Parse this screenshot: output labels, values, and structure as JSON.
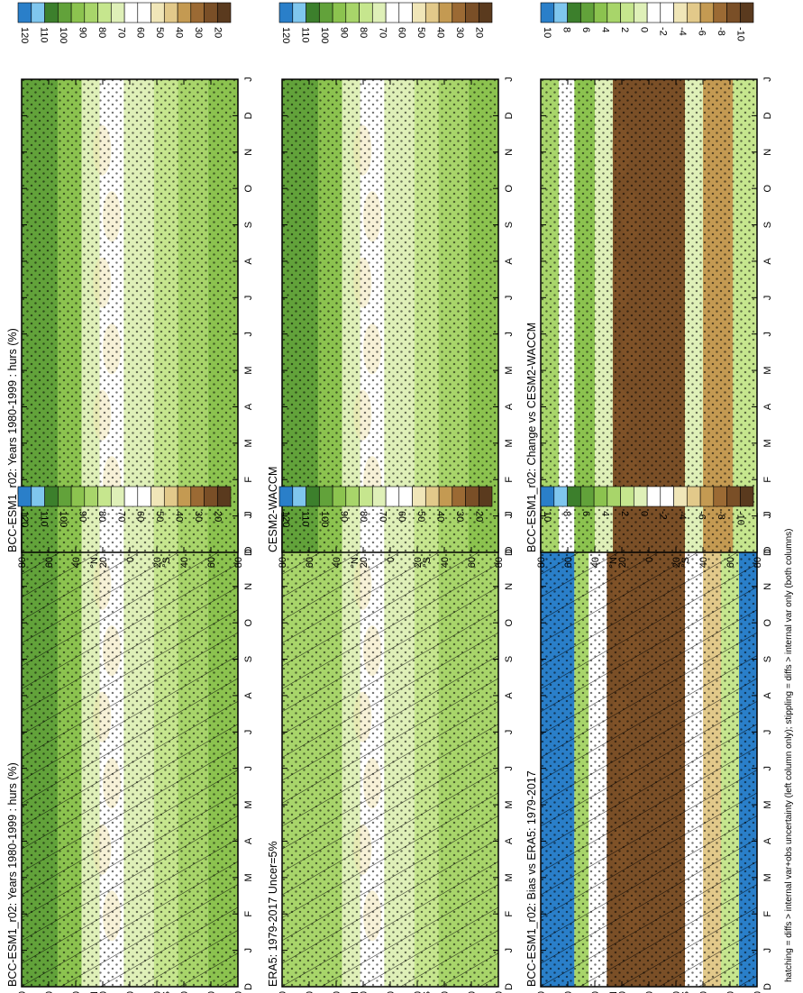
{
  "figure": {
    "footer": "hatching = diffs > internal var+obs uncertainty (left column only); stippling = diffs > internal var only (both columns)",
    "month_ticks": [
      "D",
      "J",
      "F",
      "M",
      "A",
      "M",
      "J",
      "J",
      "A",
      "S",
      "O",
      "N",
      "D",
      "J"
    ],
    "lat_ticks": [
      "80",
      "60",
      "40",
      "20",
      "0",
      "20",
      "40",
      "60",
      "80"
    ],
    "hemisphere_labels": [
      "°N",
      "°S"
    ]
  },
  "colors": {
    "abs": [
      "#5a3a1e",
      "#7a4f27",
      "#9b6a34",
      "#c49a52",
      "#e2c98a",
      "#f0e6b8",
      "#ffffff",
      "#ffffff",
      "#dff0b8",
      "#c6e68e",
      "#a8d56a",
      "#8cc34f",
      "#62a23a",
      "#3c7f2c",
      "#7fc6ee",
      "#2a7fc9"
    ],
    "diff": [
      "#5a3a1e",
      "#7a4f27",
      "#9b6a34",
      "#c49a52",
      "#e2c98a",
      "#f0e6b8",
      "#ffffff",
      "#ffffff",
      "#dff0b8",
      "#c6e68e",
      "#a8d56a",
      "#8cc34f",
      "#62a23a",
      "#3c7f2c",
      "#7fc6ee",
      "#2a7fc9"
    ]
  },
  "colorbars": {
    "abs_labels": [
      "20",
      "30",
      "40",
      "50",
      "60",
      "70",
      "80",
      "90",
      "100",
      "110",
      "120"
    ],
    "diff_labels": [
      "-10",
      "-8",
      "-6",
      "-4",
      "-2",
      "0",
      "2",
      "4",
      "6",
      "8",
      "10"
    ]
  },
  "chart_data": [
    {
      "type": "heatmap",
      "title": "BCC-ESM1_r02: Years 1980-1999 : hurs (%)",
      "x_axis": "month",
      "y_axis": "latitude",
      "bands": [
        {
          "lat": [
            60,
            90
          ],
          "value": 102
        },
        {
          "lat": [
            40,
            60
          ],
          "value": 95
        },
        {
          "lat": [
            25,
            40
          ],
          "value": 75
        },
        {
          "lat": [
            5,
            25
          ],
          "value": 62
        },
        {
          "lat": [
            -20,
            5
          ],
          "value": 72
        },
        {
          "lat": [
            -40,
            -20
          ],
          "value": 78
        },
        {
          "lat": [
            -65,
            -40
          ],
          "value": 90
        },
        {
          "lat": [
            -90,
            -65
          ],
          "value": 95
        }
      ],
      "hatched": true,
      "stippled": true
    },
    {
      "type": "heatmap",
      "title": "BCC-ESM1_r02: Years 1980-1999 : hurs (%)",
      "x_axis": "month",
      "y_axis": "latitude",
      "bands": [
        {
          "lat": [
            60,
            90
          ],
          "value": 100
        },
        {
          "lat": [
            40,
            60
          ],
          "value": 92
        },
        {
          "lat": [
            25,
            40
          ],
          "value": 75
        },
        {
          "lat": [
            5,
            25
          ],
          "value": 65
        },
        {
          "lat": [
            -20,
            5
          ],
          "value": 72
        },
        {
          "lat": [
            -40,
            -20
          ],
          "value": 80
        },
        {
          "lat": [
            -65,
            -40
          ],
          "value": 90
        },
        {
          "lat": [
            -90,
            -65
          ],
          "value": 93
        }
      ],
      "hatched": false,
      "stippled": true
    },
    {
      "type": "heatmap",
      "title": "ERA5: 1979-2017 Uncer=5%",
      "x_axis": "month",
      "y_axis": "latitude",
      "bands": [
        {
          "lat": [
            60,
            90
          ],
          "value": 90
        },
        {
          "lat": [
            40,
            60
          ],
          "value": 86
        },
        {
          "lat": [
            25,
            40
          ],
          "value": 72
        },
        {
          "lat": [
            5,
            25
          ],
          "value": 66
        },
        {
          "lat": [
            -20,
            5
          ],
          "value": 76
        },
        {
          "lat": [
            -40,
            -20
          ],
          "value": 80
        },
        {
          "lat": [
            -65,
            -40
          ],
          "value": 86
        },
        {
          "lat": [
            -90,
            -65
          ],
          "value": 88
        }
      ],
      "hatched": true,
      "stippled": true
    },
    {
      "type": "heatmap",
      "title": "CESM2-WACCM",
      "x_axis": "month",
      "y_axis": "latitude",
      "bands": [
        {
          "lat": [
            60,
            90
          ],
          "value": 100
        },
        {
          "lat": [
            40,
            60
          ],
          "value": 92
        },
        {
          "lat": [
            25,
            40
          ],
          "value": 74
        },
        {
          "lat": [
            5,
            25
          ],
          "value": 68
        },
        {
          "lat": [
            -20,
            5
          ],
          "value": 76
        },
        {
          "lat": [
            -40,
            -20
          ],
          "value": 82
        },
        {
          "lat": [
            -65,
            -40
          ],
          "value": 88
        },
        {
          "lat": [
            -90,
            -65
          ],
          "value": 92
        }
      ],
      "hatched": false,
      "stippled": true
    },
    {
      "type": "heatmap",
      "title": "BCC-ESM1_r02: Bias vs ERA5: 1979-2017",
      "x_axis": "month",
      "y_axis": "latitude",
      "bands": [
        {
          "lat": [
            62,
            90
          ],
          "value": 12
        },
        {
          "lat": [
            50,
            62
          ],
          "value": 4
        },
        {
          "lat": [
            35,
            50
          ],
          "value": -1
        },
        {
          "lat": [
            -30,
            35
          ],
          "value": -11
        },
        {
          "lat": [
            -45,
            -30
          ],
          "value": -2
        },
        {
          "lat": [
            -60,
            -45
          ],
          "value": -6
        },
        {
          "lat": [
            -75,
            -60
          ],
          "value": 2
        },
        {
          "lat": [
            -90,
            -75
          ],
          "value": 12
        }
      ],
      "hatched": true,
      "stippled": true
    },
    {
      "type": "heatmap",
      "title": "BCC-ESM1_r02: Change vs CESM2-WACCM",
      "x_axis": "month",
      "y_axis": "latitude",
      "bands": [
        {
          "lat": [
            75,
            90
          ],
          "value": 4
        },
        {
          "lat": [
            62,
            75
          ],
          "value": -3
        },
        {
          "lat": [
            45,
            62
          ],
          "value": 5
        },
        {
          "lat": [
            30,
            45
          ],
          "value": 1
        },
        {
          "lat": [
            -30,
            30
          ],
          "value": -11
        },
        {
          "lat": [
            -45,
            -30
          ],
          "value": 0
        },
        {
          "lat": [
            -70,
            -45
          ],
          "value": -8
        },
        {
          "lat": [
            -90,
            -70
          ],
          "value": 3
        }
      ],
      "hatched": false,
      "stippled": true
    }
  ]
}
